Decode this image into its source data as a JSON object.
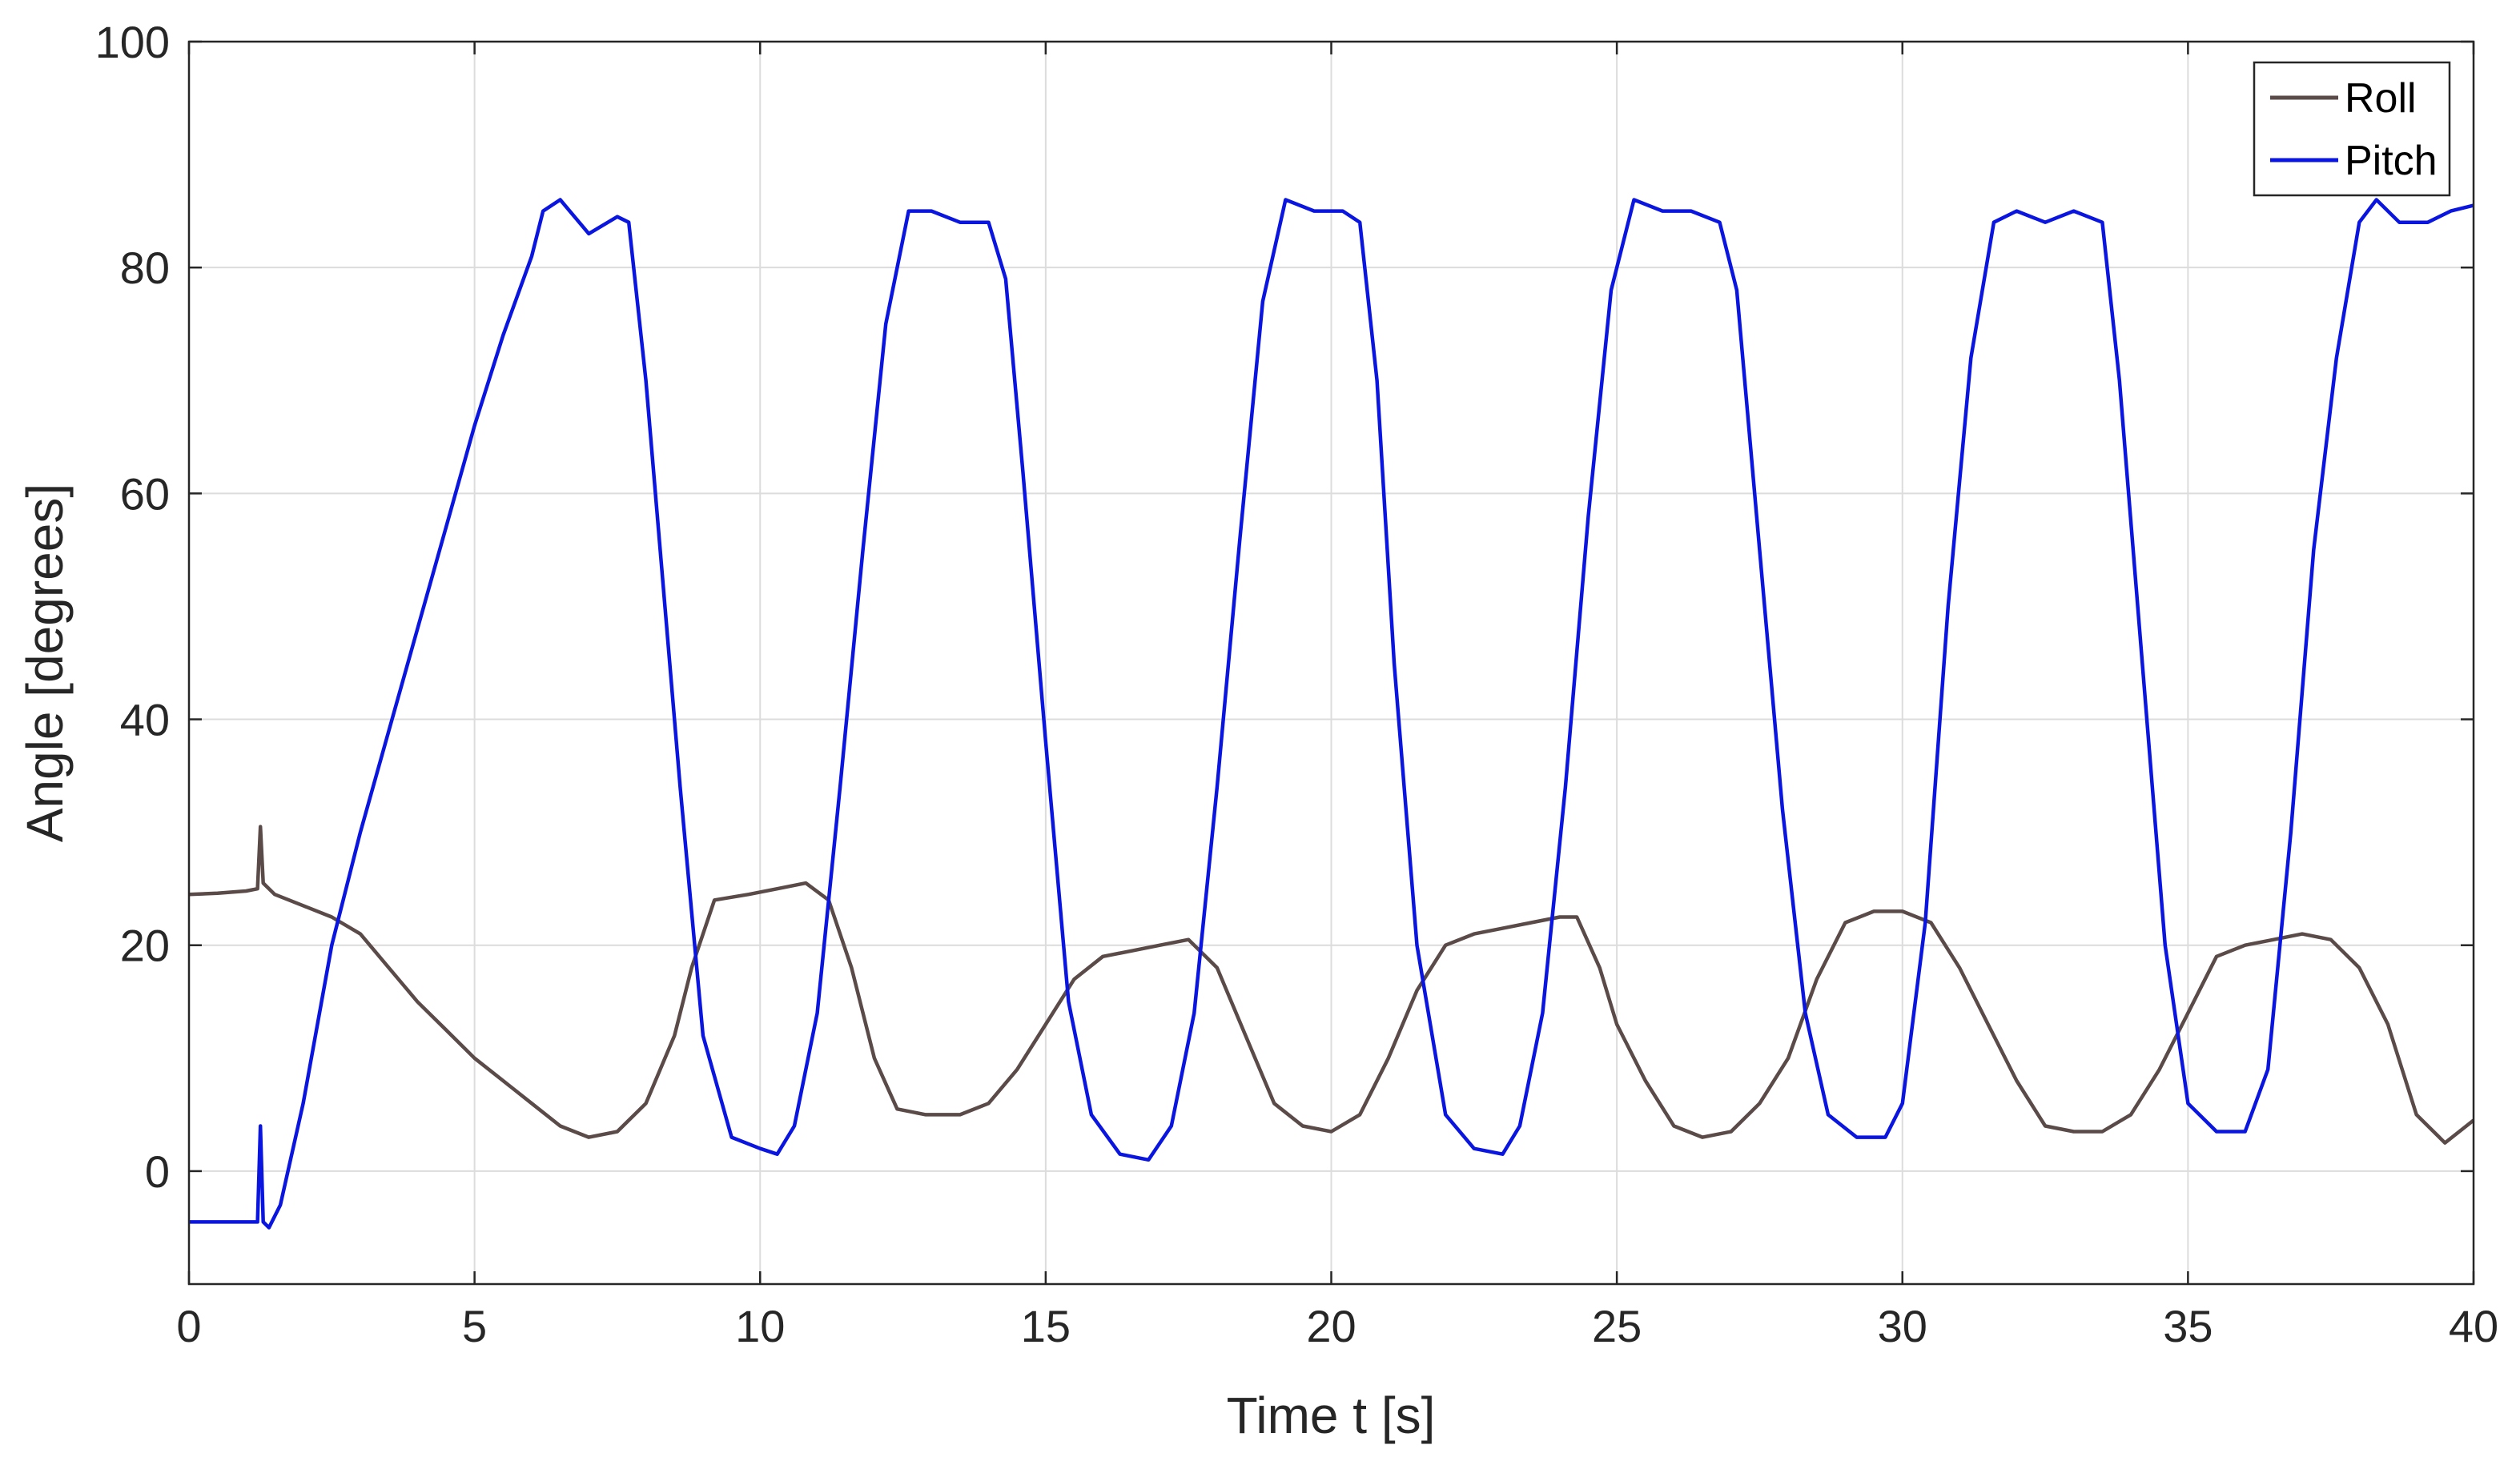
{
  "chart_data": {
    "type": "line",
    "title": "",
    "xlabel": "Time t [s]",
    "ylabel": "Angle [degrees]",
    "xlim": [
      0,
      40
    ],
    "ylim": [
      -10,
      100
    ],
    "xticks": [
      0,
      5,
      10,
      15,
      20,
      25,
      30,
      35,
      40
    ],
    "yticks": [
      0,
      20,
      40,
      60,
      80,
      100
    ],
    "xtick_labels": [
      "0",
      "5",
      "10",
      "15",
      "20",
      "25",
      "30",
      "35",
      "40"
    ],
    "ytick_labels": [
      "0",
      "20",
      "40",
      "60",
      "80",
      "100"
    ],
    "grid": true,
    "legend_position": "top-right",
    "series": [
      {
        "name": "Roll",
        "color": "#5a4a48",
        "x": [
          0,
          0.5,
          1.0,
          1.2,
          1.25,
          1.3,
          1.5,
          2.0,
          2.5,
          3.0,
          3.5,
          4.0,
          4.5,
          5.0,
          5.5,
          6.0,
          6.5,
          7.0,
          7.5,
          8.0,
          8.5,
          8.8,
          9.2,
          9.8,
          10.3,
          10.8,
          11.2,
          11.6,
          12.0,
          12.4,
          12.9,
          13.5,
          14.0,
          14.5,
          15.0,
          15.5,
          16.0,
          16.5,
          17.0,
          17.5,
          18.0,
          18.5,
          19.0,
          19.5,
          20.0,
          20.5,
          21.0,
          21.5,
          22.0,
          22.5,
          23.0,
          23.5,
          24.0,
          24.3,
          24.7,
          25.0,
          25.5,
          26.0,
          26.5,
          27.0,
          27.5,
          28.0,
          28.5,
          29.0,
          29.5,
          30.0,
          30.5,
          31.0,
          31.5,
          32.0,
          32.5,
          33.0,
          33.5,
          34.0,
          34.5,
          35.0,
          35.5,
          36.0,
          36.5,
          37.0,
          37.5,
          38.0,
          38.5,
          39.0,
          39.5,
          40.0
        ],
        "values": [
          24.5,
          24.6,
          24.8,
          25,
          30.5,
          25.5,
          24.5,
          23.5,
          22.5,
          21,
          18,
          15,
          12.5,
          10,
          8,
          6,
          4,
          3,
          3.5,
          6,
          12,
          18,
          24,
          24.5,
          25,
          25.5,
          24,
          18,
          10,
          5.5,
          5,
          5,
          6,
          9,
          13,
          17,
          19,
          19.5,
          20,
          20.5,
          18,
          12,
          6,
          4,
          3.5,
          5,
          10,
          16,
          20,
          21,
          21.5,
          22,
          22.5,
          22.5,
          18,
          13,
          8,
          4,
          3,
          3.5,
          6,
          10,
          17,
          22,
          23,
          23,
          22,
          18,
          13,
          8,
          4,
          3.5,
          3.5,
          5,
          9,
          14,
          19,
          20,
          20.5,
          21,
          20.5,
          18,
          13,
          5,
          2.5,
          4.5
        ]
      },
      {
        "name": "Pitch",
        "color": "#0a16e0",
        "x": [
          0,
          0.5,
          1.0,
          1.2,
          1.25,
          1.3,
          1.4,
          1.6,
          2.0,
          2.5,
          3.0,
          3.5,
          4.0,
          4.5,
          5.0,
          5.5,
          6.0,
          6.2,
          6.5,
          7.0,
          7.5,
          7.7,
          8.0,
          8.3,
          8.6,
          9.0,
          9.5,
          10.0,
          10.3,
          10.6,
          11.0,
          11.4,
          11.8,
          12.2,
          12.6,
          13.0,
          13.5,
          14.0,
          14.3,
          14.6,
          15.0,
          15.4,
          15.8,
          16.3,
          16.8,
          17.2,
          17.6,
          18.0,
          18.4,
          18.8,
          19.2,
          19.7,
          20.2,
          20.5,
          20.8,
          21.1,
          21.5,
          22.0,
          22.5,
          23.0,
          23.3,
          23.7,
          24.1,
          24.5,
          24.9,
          25.3,
          25.8,
          26.3,
          26.8,
          27.1,
          27.5,
          27.9,
          28.3,
          28.7,
          29.2,
          29.7,
          30.0,
          30.4,
          30.8,
          31.2,
          31.6,
          32.0,
          32.5,
          33.0,
          33.5,
          33.8,
          34.2,
          34.6,
          35.0,
          35.5,
          36.0,
          36.4,
          36.8,
          37.2,
          37.6,
          38.0,
          38.3,
          38.7,
          39.2,
          39.6,
          40.0
        ],
        "values": [
          -4.5,
          -4.5,
          -4.5,
          -4.5,
          4,
          -4.5,
          -5,
          -3,
          6,
          20,
          30,
          39,
          48,
          57,
          66,
          74,
          81,
          85,
          86,
          83,
          84.5,
          84,
          70,
          52,
          34,
          12,
          3,
          2,
          1.5,
          4,
          14,
          34,
          55,
          75,
          85,
          85,
          84,
          84,
          79,
          62,
          38,
          15,
          5,
          1.5,
          1,
          4,
          14,
          34,
          56,
          77,
          86,
          85,
          85,
          84,
          70,
          45,
          20,
          5,
          2,
          1.5,
          4,
          14,
          34,
          58,
          78,
          86,
          85,
          85,
          84,
          78,
          55,
          32,
          14,
          5,
          3,
          3,
          6,
          22,
          50,
          72,
          84,
          85,
          84,
          85,
          84,
          70,
          45,
          20,
          6,
          3.5,
          3.5,
          9,
          30,
          55,
          72,
          84,
          86,
          84,
          84,
          85,
          85.5
        ]
      }
    ]
  }
}
